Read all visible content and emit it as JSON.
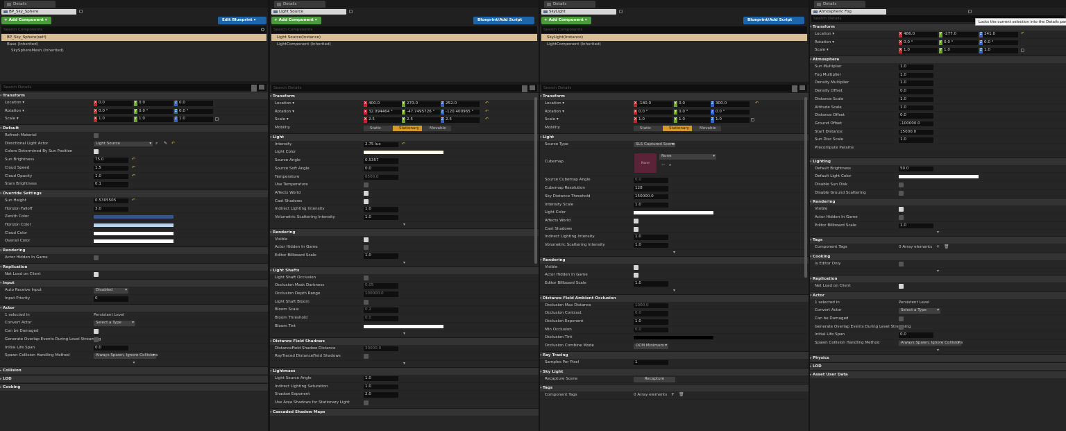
{
  "window": {
    "controls": "— ◻ ✕"
  },
  "panels": [
    {
      "tab": "Details",
      "name": "BP_Sky_Sphere",
      "add_component": "+ Add Component ▾",
      "blueprint_btn": "Edit Blueprint ▾",
      "search_components": "Search Components",
      "selected": "BP_Sky_Sphere(self)",
      "tree": [
        {
          "label": "Base (Inherited)",
          "level": 0
        },
        {
          "label": "SkySphereMesh (Inherited)",
          "level": 1
        }
      ],
      "search_details": "Search Details"
    },
    {
      "tab": "Details",
      "name": "Light Source",
      "add_component": "+ Add Component ▾",
      "blueprint_btn": "Blueprint/Add Script",
      "search_components": "Search Components",
      "selected": "Light Source(Instance)",
      "tree": [
        {
          "label": "LightComponent (Inherited)",
          "level": 0
        }
      ],
      "search_details": "Search Details"
    },
    {
      "tab": "Details",
      "name": "SkyLight",
      "add_component": "+ Add Component ▾",
      "blueprint_btn": "Blueprint/Add Script",
      "search_components": "Search Components",
      "selected": "SkyLight(Instance)",
      "tree": [
        {
          "label": "LightComponent (Inherited)",
          "level": 0
        }
      ],
      "search_details": "Search Details"
    },
    {
      "tab": "Details",
      "name": "Atmospheric Fog",
      "search_details": "Search Details",
      "tooltip": "Locks the current selection into the Details panel"
    }
  ],
  "p1": {
    "transform": {
      "title": "Transform",
      "location": {
        "label": "Location ▾",
        "x": "0.0",
        "y": "0.0",
        "z": "0.0"
      },
      "rotation": {
        "label": "Rotation ▾",
        "x": "0.0 °",
        "y": "0.0 °",
        "z": "0.0 °"
      },
      "scale": {
        "label": "Scale ▾",
        "x": "1.0",
        "y": "1.0",
        "z": "1.0"
      }
    },
    "default": {
      "title": "Default",
      "refresh": "Refresh Material",
      "dir_light": "Directional Light Actor",
      "dir_light_val": "Light Source",
      "colors_det": "Colors Determined By Sun Position",
      "sun_brightness": "Sun Brightness",
      "sun_brightness_val": "75.0",
      "cloud_speed": "Cloud Speed",
      "cloud_speed_val": "1.5",
      "cloud_opacity": "Cloud Opacity",
      "cloud_opacity_val": "1.0",
      "stars": "Stars Brightness",
      "stars_val": "0.1"
    },
    "override": {
      "title": "Override Settings",
      "sun_height": "Sun Height",
      "sun_height_val": "0.5305505",
      "horizon_falloff": "Horizon Falloff",
      "horizon_falloff_val": "3.0",
      "zenith": "Zenith Color",
      "horizon": "Horizon Color",
      "cloud_color": "Cloud Color",
      "overall": "Overall Color"
    },
    "rendering": {
      "title": "Rendering",
      "hidden": "Actor Hidden In Game"
    },
    "replication": {
      "title": "Replication",
      "net_load": "Net Load on Client"
    },
    "input": {
      "title": "Input",
      "auto_receive": "Auto Receive Input",
      "auto_receive_val": "Disabled",
      "priority": "Input Priority",
      "priority_val": "0"
    },
    "actor": {
      "title": "Actor",
      "selected": "1 selected in",
      "level": "Persistent Level",
      "convert": "Convert Actor",
      "convert_val": "Select a Type",
      "damaged": "Can be Damaged",
      "overlap": "Generate Overlap Events During Level Streaming",
      "life": "Initial Life Span",
      "life_val": "0.0",
      "spawn": "Spawn Collision Handling Method",
      "spawn_val": "Always Spawn, Ignore Collisions"
    },
    "collapsed": [
      "Collision",
      "LOD",
      "Cooking"
    ]
  },
  "p2": {
    "transform": {
      "title": "Transform",
      "location": {
        "label": "Location ▾",
        "x": "400.0",
        "y": "270.0",
        "z": "252.0"
      },
      "rotation": {
        "label": "Rotation ▾",
        "x": "32.094464 °",
        "y": "-47.7495726 °",
        "z": "-120.400965 °"
      },
      "scale": {
        "label": "Scale ▾",
        "x": "2.5",
        "y": "2.5",
        "z": "2.5"
      },
      "mobility": "Mobility",
      "mob": [
        "Static",
        "Stationary",
        "Movable"
      ]
    },
    "light": {
      "title": "Light",
      "intensity": "Intensity",
      "intensity_val": "2.75 lux",
      "color": "Light Color",
      "angle": "Source Angle",
      "angle_val": "0.5357",
      "soft": "Source Soft Angle",
      "soft_val": "0.0",
      "temp": "Temperature",
      "temp_val": "6500.0",
      "use_temp": "Use Temperature",
      "affects": "Affects World",
      "shadows": "Cast Shadows",
      "indirect": "Indirect Lighting Intensity",
      "indirect_val": "1.0",
      "volumetric": "Volumetric Scattering Intensity",
      "volumetric_val": "1.0"
    },
    "rendering": {
      "title": "Rendering",
      "visible": "Visible",
      "hidden": "Actor Hidden In Game",
      "billboard": "Editor Billboard Scale",
      "billboard_val": "1.0"
    },
    "shafts": {
      "title": "Light Shafts",
      "occlusion": "Light Shaft Occlusion",
      "mask": "Occlusion Mask Darkness",
      "mask_val": "0.05",
      "depth": "Occlusion Depth Range",
      "depth_val": "100000.0",
      "bloom": "Light Shaft Bloom",
      "bloom_scale": "Bloom Scale",
      "bloom_scale_val": "0.2",
      "threshold": "Bloom Threshold",
      "threshold_val": "0.0",
      "tint": "Bloom Tint"
    },
    "dfs": {
      "title": "Distance Field Shadows",
      "distance": "DistanceField Shadow Distance",
      "distance_val": "30000.0",
      "rt": "RayTraced DistanceField Shadows"
    },
    "lightmass": {
      "title": "Lightmass",
      "angle": "Light Source Angle",
      "angle_val": "1.0",
      "saturation": "Indirect Lighting Saturation",
      "saturation_val": "1.0",
      "exponent": "Shadow Exponent",
      "exponent_val": "2.0",
      "area": "Use Area Shadows for Stationary Light"
    },
    "csm": {
      "title": "Cascaded Shadow Maps"
    }
  },
  "p3": {
    "transform": {
      "title": "Transform",
      "location": {
        "label": "Location ▾",
        "x": "-180.0",
        "y": "0.0",
        "z": "300.0"
      },
      "rotation": {
        "label": "Rotation ▾",
        "x": "0.0 °",
        "y": "0.0 °",
        "z": "0.0 °"
      },
      "scale": {
        "label": "Scale ▾",
        "x": "1.0",
        "y": "1.0",
        "z": "1.0"
      },
      "mobility": "Mobility",
      "mob": [
        "Static",
        "Stationary",
        "Movable"
      ]
    },
    "light": {
      "title": "Light",
      "source_type": "Source Type",
      "source_type_val": "SLS Captured Scene",
      "cubemap": "Cubemap",
      "cubemap_val": "None",
      "cubemap_thumb": "None",
      "cube_angle": "Source Cubemap Angle",
      "cube_angle_val": "0.0",
      "cube_res": "Cubemap Resolution",
      "cube_res_val": "128",
      "sky_dist": "Sky Distance Threshold",
      "sky_dist_val": "150000.0",
      "intensity": "Intensity Scale",
      "intensity_val": "1.0",
      "color": "Light Color",
      "affects": "Affects World",
      "shadows": "Cast Shadows",
      "indirect": "Indirect Lighting Intensity",
      "indirect_val": "1.0",
      "volumetric": "Volumetric Scattering Intensity",
      "volumetric_val": "1.0"
    },
    "rendering": {
      "title": "Rendering",
      "visible": "Visible",
      "hidden": "Actor Hidden In Game",
      "billboard": "Editor Billboard Scale",
      "billboard_val": "1.0"
    },
    "dfao": {
      "title": "Distance Field Ambient Occlusion",
      "max_dist": "Occlusion Max Distance",
      "max_dist_val": "1000.0",
      "contrast": "Occlusion Contrast",
      "contrast_val": "0.0",
      "exponent": "Occlusion Exponent",
      "exponent_val": "1.0",
      "min": "Min Occlusion",
      "min_val": "0.0",
      "tint": "Occlusion Tint",
      "combine": "Occlusion Combine Mode",
      "combine_val": "OCM Minimum"
    },
    "rt": {
      "title": "Ray Tracing",
      "samples": "Samples Per Pixel",
      "samples_val": "1"
    },
    "sky": {
      "title": "Sky Light",
      "recapture": "Recapture Scene",
      "recapture_btn": "Recapture"
    },
    "tags": {
      "title": "Tags",
      "component": "Component Tags",
      "component_val": "0 Array elements"
    }
  },
  "p4": {
    "transform": {
      "title": "Transform",
      "location": {
        "label": "Location ▾",
        "x": "486.0",
        "y": "-277.0",
        "z": "241.0"
      },
      "rotation": {
        "label": "Rotation ▾",
        "x": "0.0 °",
        "y": "0.0 °",
        "z": "0.0 °"
      },
      "scale": {
        "label": "Scale ▾",
        "x": "1.0",
        "y": "1.0",
        "z": "1.0"
      }
    },
    "atmos": {
      "title": "Atmosphere",
      "sun_mult": "Sun Multiplier",
      "sun_mult_val": "1.0",
      "fog_mult": "Fog Multiplier",
      "fog_mult_val": "1.0",
      "density_mult": "Density Multiplier",
      "density_mult_val": "1.0",
      "density_off": "Density Offset",
      "density_off_val": "0.0",
      "dist_scale": "Distance Scale",
      "dist_scale_val": "1.0",
      "alt_scale": "Altitude Scale",
      "alt_scale_val": "1.0",
      "dist_off": "Distance Offset",
      "dist_off_val": "0.0",
      "ground_off": "Ground Offset",
      "ground_off_val": "-100000.0",
      "start_dist": "Start Distance",
      "start_dist_val": "15000.0",
      "sun_disc": "Sun Disc Scale",
      "sun_disc_val": "1.0",
      "precompute": "Precompute Params"
    },
    "lighting": {
      "title": "Lighting",
      "brightness": "Default Brightness",
      "brightness_val": "50.0",
      "color": "Default Light Color",
      "disable_sun": "Disable Sun Disk",
      "disable_ground": "Disable Ground Scattering"
    },
    "rendering": {
      "title": "Rendering",
      "visible": "Visible",
      "hidden": "Actor Hidden In Game",
      "billboard": "Editor Billboard Scale",
      "billboard_val": "1.0"
    },
    "tags": {
      "title": "Tags",
      "component": "Component Tags",
      "component_val": "0 Array elements"
    },
    "cooking": {
      "title": "Cooking",
      "editor_only": "Is Editor Only"
    },
    "replication": {
      "title": "Replication",
      "net_load": "Net Load on Client"
    },
    "actor": {
      "title": "Actor",
      "selected": "1 selected in",
      "level": "Persistent Level",
      "convert": "Convert Actor",
      "convert_val": "Select a Type",
      "damaged": "Can be Damaged",
      "overlap": "Generate Overlap Events During Level Streaming",
      "life": "Initial Life Span",
      "life_val": "0.0",
      "spawn": "Spawn Collision Handling Method",
      "spawn_val": "Always Spawn, Ignore Collisions"
    },
    "collapsed": [
      "Physics",
      "LOD",
      "Asset User Data"
    ]
  },
  "colors": {
    "zenith": "#34578a",
    "horizon": "#b8d2f0",
    "cloud": "#ffffff",
    "overall": "#ffffff",
    "selected": "#d8bc92",
    "add_btn": "#4b9b3d",
    "bp_btn": "#1e64a8"
  }
}
